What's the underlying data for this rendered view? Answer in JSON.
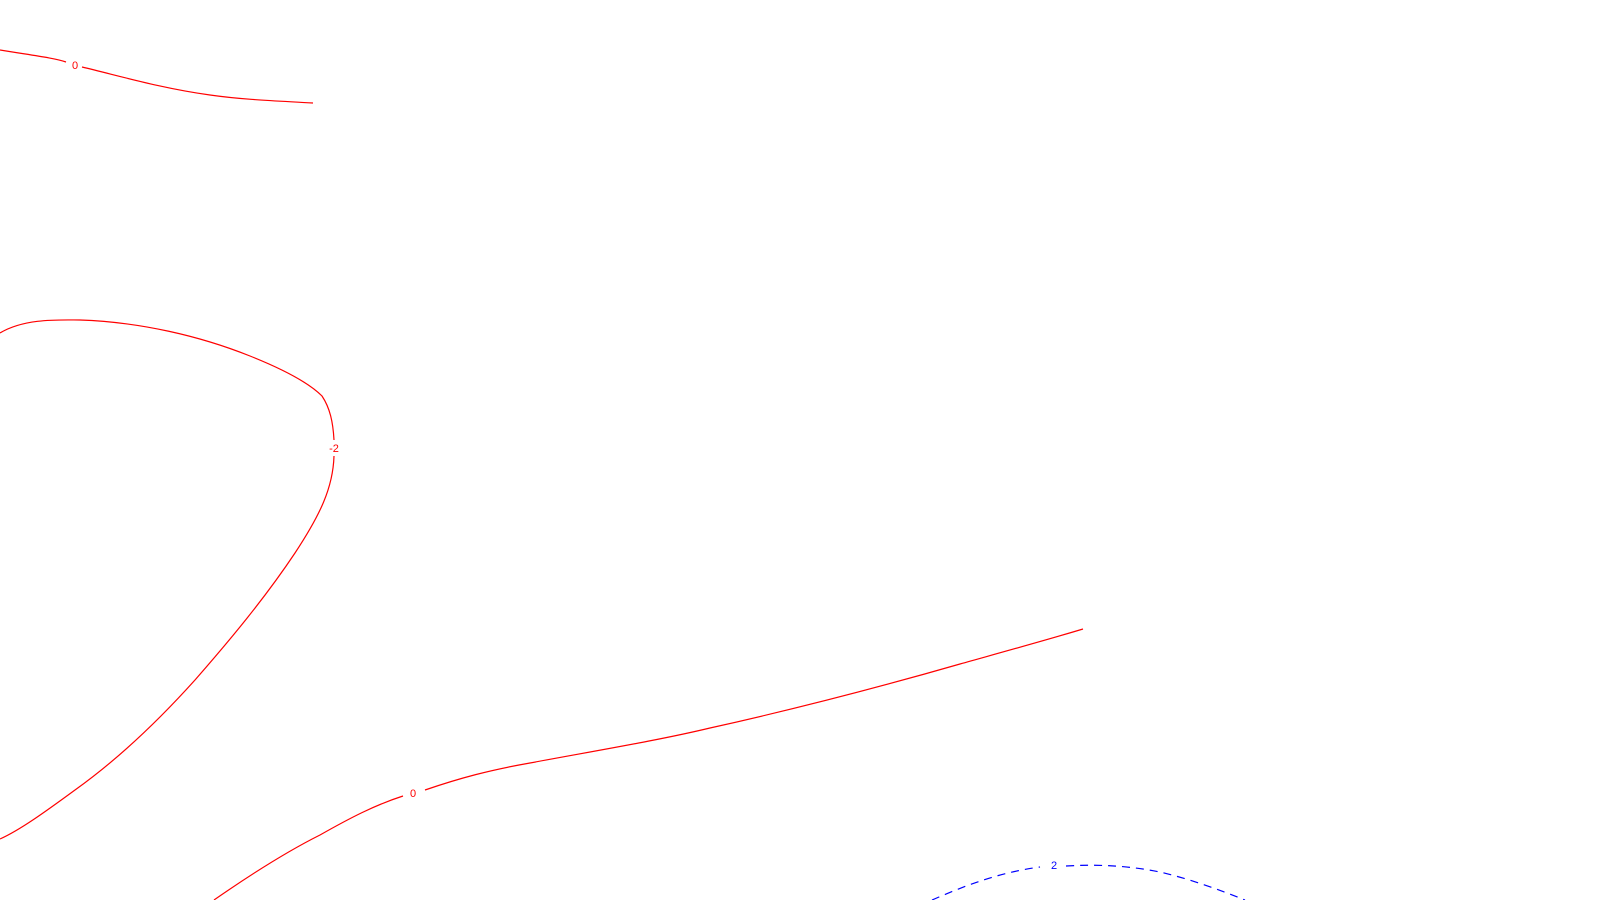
{
  "colors": {
    "background": "#ffffff",
    "contour_red": "#ff0000",
    "contour_blue": "#0000ff"
  },
  "contours": [
    {
      "id": "upper-left",
      "label": "0",
      "color": "#ff0000",
      "style": "solid"
    },
    {
      "id": "left-loop",
      "label": "-2",
      "color": "#ff0000",
      "style": "solid"
    },
    {
      "id": "lower-middle",
      "label": "0",
      "color": "#ff0000",
      "style": "solid"
    },
    {
      "id": "lower-right",
      "label": "2",
      "color": "#0000ff",
      "style": "dashed"
    }
  ]
}
